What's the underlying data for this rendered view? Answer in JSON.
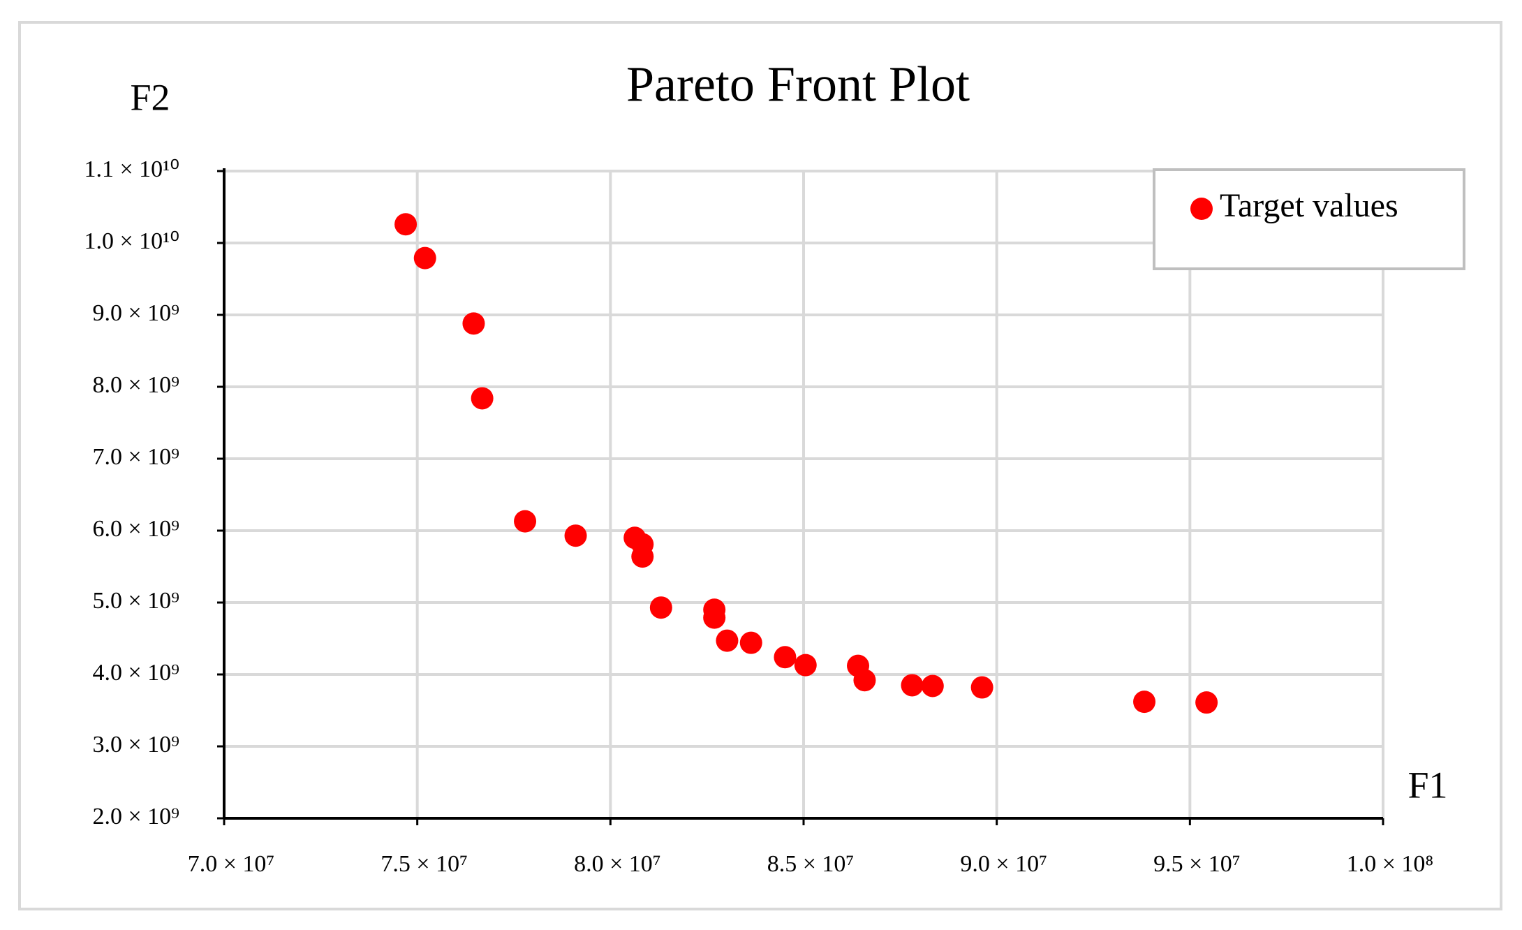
{
  "chart_data": {
    "type": "scatter",
    "title": "Pareto Front Plot",
    "x_label": "F1",
    "y_label": "F2",
    "series": [
      {
        "name": "Target values",
        "color": "#ff0000",
        "x": [
          74700000,
          75200000,
          76460000,
          76680000,
          77790000,
          79100000,
          80630000,
          80830000,
          80830000,
          81310000,
          82690000,
          82690000,
          83020000,
          83640000,
          84520000,
          85050000,
          86410000,
          86580000,
          87810000,
          88340000,
          89620000,
          93820000,
          95430000
        ],
        "values": [
          10260000000,
          9790000000,
          8880000000,
          7840000000,
          6130000000,
          5930000000,
          5900000000,
          5810000000,
          5640000000,
          4930000000,
          4900000000,
          4790000000,
          4470000000,
          4440000000,
          4240000000,
          4130000000,
          4120000000,
          3920000000,
          3850000000,
          3840000000,
          3820000000,
          3620000000,
          3610000000
        ]
      }
    ],
    "xlim": [
      70000000,
      100000000
    ],
    "xticks": [
      {
        "value": 70000000,
        "label": "7.0 × 10⁷"
      },
      {
        "value": 75000000,
        "label": "7.5 × 10⁷"
      },
      {
        "value": 80000000,
        "label": "8.0 × 10⁷"
      },
      {
        "value": 85000000,
        "label": "8.5 × 10⁷"
      },
      {
        "value": 90000000,
        "label": "9.0 × 10⁷"
      },
      {
        "value": 95000000,
        "label": "9.5 × 10⁷"
      },
      {
        "value": 100000000,
        "label": "1.0 × 10⁸"
      }
    ],
    "ylim": [
      2000000000,
      11000000000
    ],
    "yticks": [
      {
        "value": 2000000000,
        "label": "2.0 × 10⁹"
      },
      {
        "value": 3000000000,
        "label": "3.0 × 10⁹"
      },
      {
        "value": 4000000000,
        "label": "4.0 × 10⁹"
      },
      {
        "value": 5000000000,
        "label": "5.0 × 10⁹"
      },
      {
        "value": 6000000000,
        "label": "6.0 × 10⁹"
      },
      {
        "value": 7000000000,
        "label": "7.0 × 10⁹"
      },
      {
        "value": 8000000000,
        "label": "8.0 × 10⁹"
      },
      {
        "value": 9000000000,
        "label": "9.0 × 10⁹"
      },
      {
        "value": 10000000000,
        "label": "1.0 × 10¹⁰"
      },
      {
        "value": 11000000000,
        "label": "1.1 × 10¹⁰"
      }
    ],
    "grid": true,
    "legend": "upper right"
  }
}
